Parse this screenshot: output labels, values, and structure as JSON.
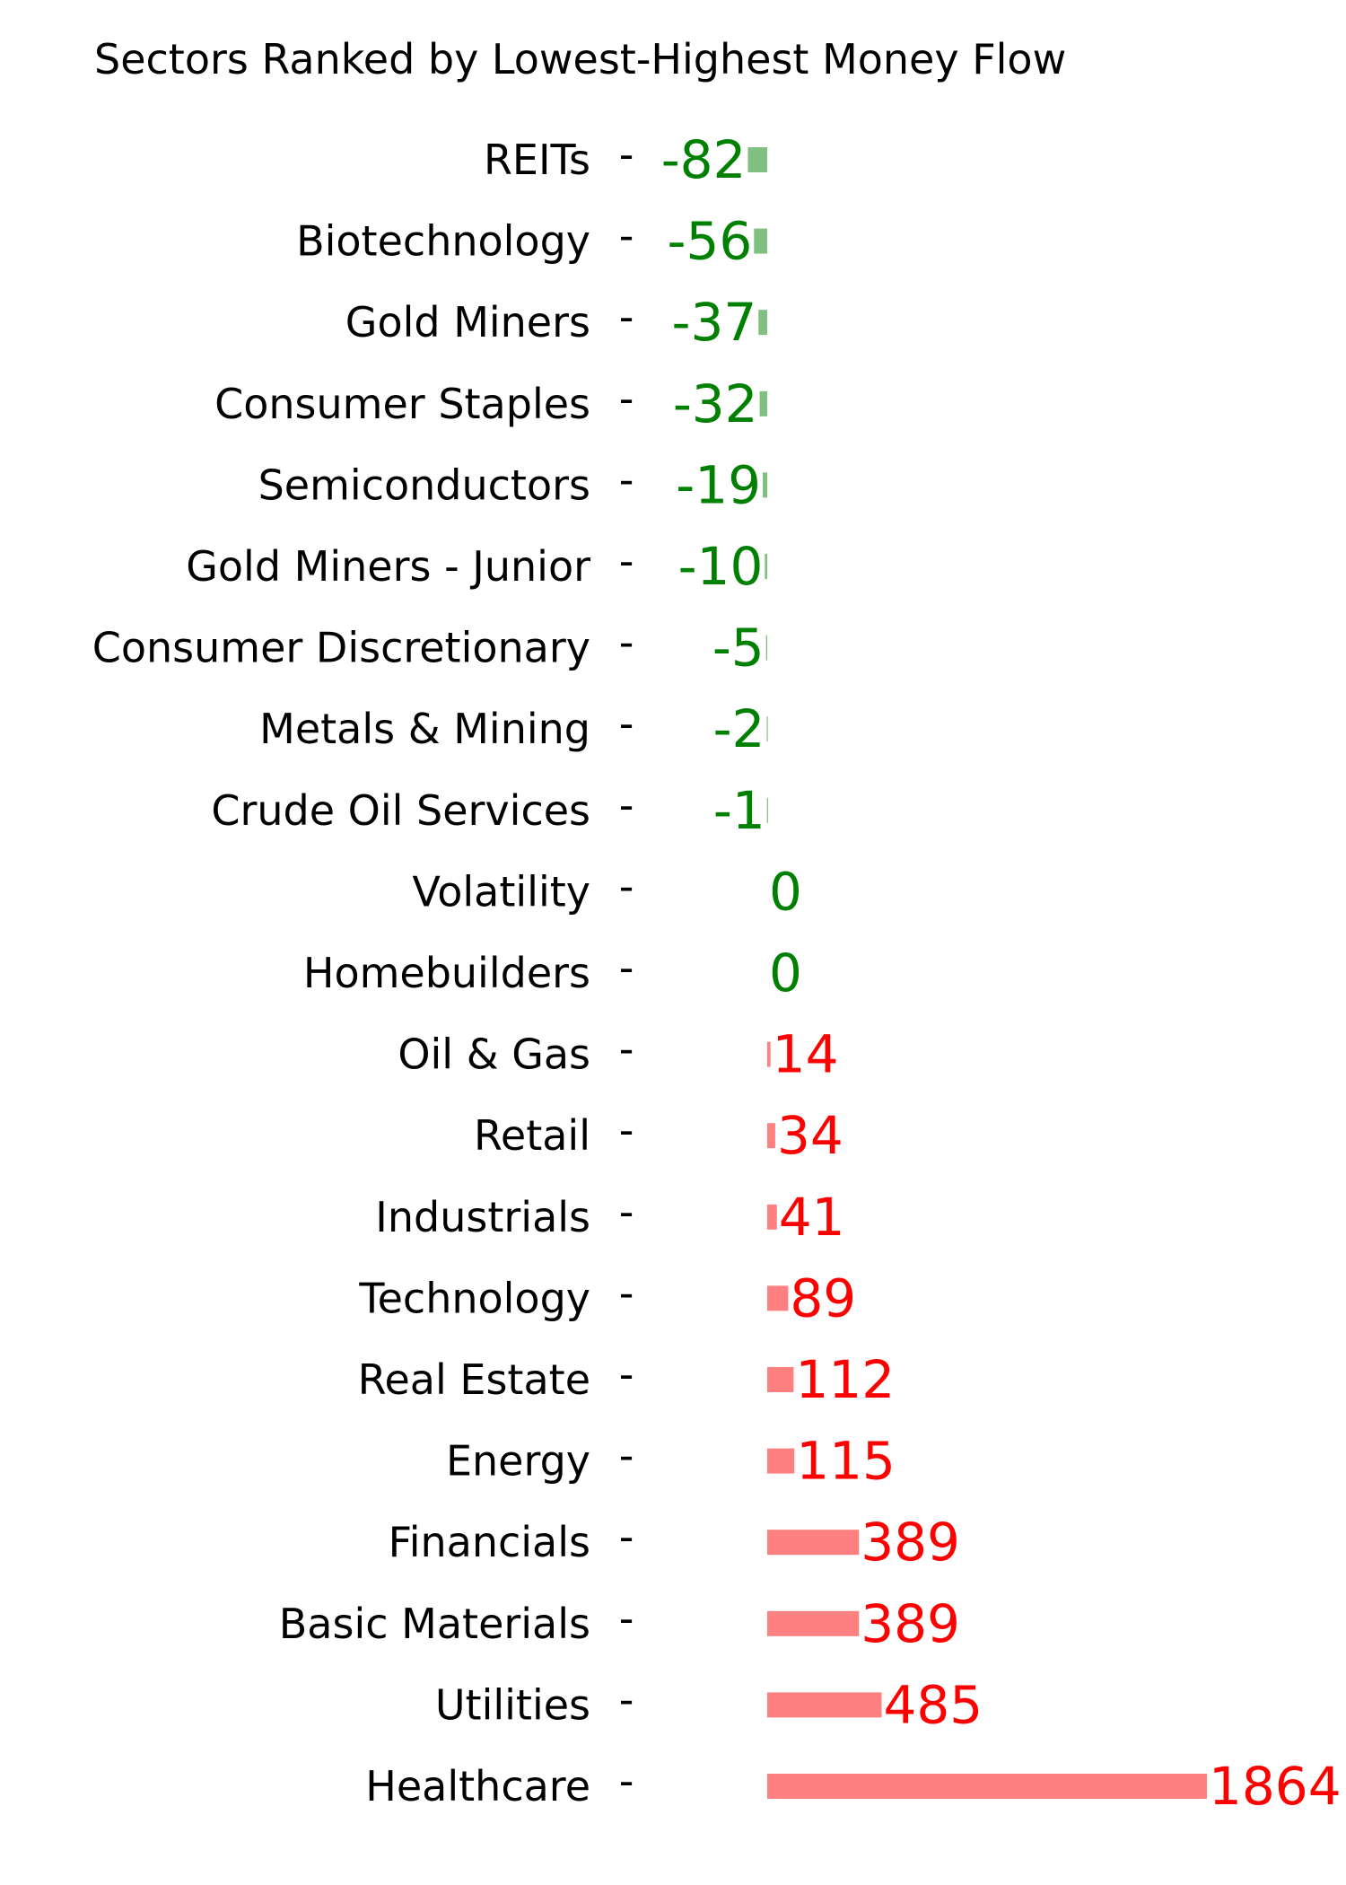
{
  "chart_data": {
    "type": "bar",
    "orientation": "horizontal",
    "title": "Sectors Ranked by Lowest-Highest Money Flow",
    "xlabel": "",
    "ylabel": "",
    "grid": false,
    "categories": [
      "REITs",
      "Biotechnology",
      "Gold Miners",
      "Consumer Staples",
      "Semiconductors",
      "Gold Miners - Junior",
      "Consumer Discretionary",
      "Metals & Mining",
      "Crude Oil Services",
      "Volatility",
      "Homebuilders",
      "Oil & Gas",
      "Retail",
      "Industrials",
      "Technology",
      "Real Estate",
      "Energy",
      "Financials",
      "Basic Materials",
      "Utilities",
      "Healthcare"
    ],
    "values": [
      -82,
      -56,
      -37,
      -32,
      -19,
      -10,
      -5,
      -2,
      -1,
      0,
      0,
      14,
      34,
      41,
      89,
      112,
      115,
      389,
      389,
      485,
      1864
    ],
    "value_labels": [
      "-82",
      "-56",
      "-37",
      "-32",
      "-19",
      "-10",
      "-5",
      "-2",
      "-1",
      "0",
      "0",
      "14",
      "34",
      "41",
      "89",
      "112",
      "115",
      "389",
      "389",
      "485",
      "1864"
    ],
    "tick_mark": "-",
    "colors": {
      "negative_bar": "#80c080",
      "negative_text": "#008000",
      "positive_bar": "#ff8080",
      "positive_text": "#ff0000",
      "label_text": "#000000"
    }
  }
}
